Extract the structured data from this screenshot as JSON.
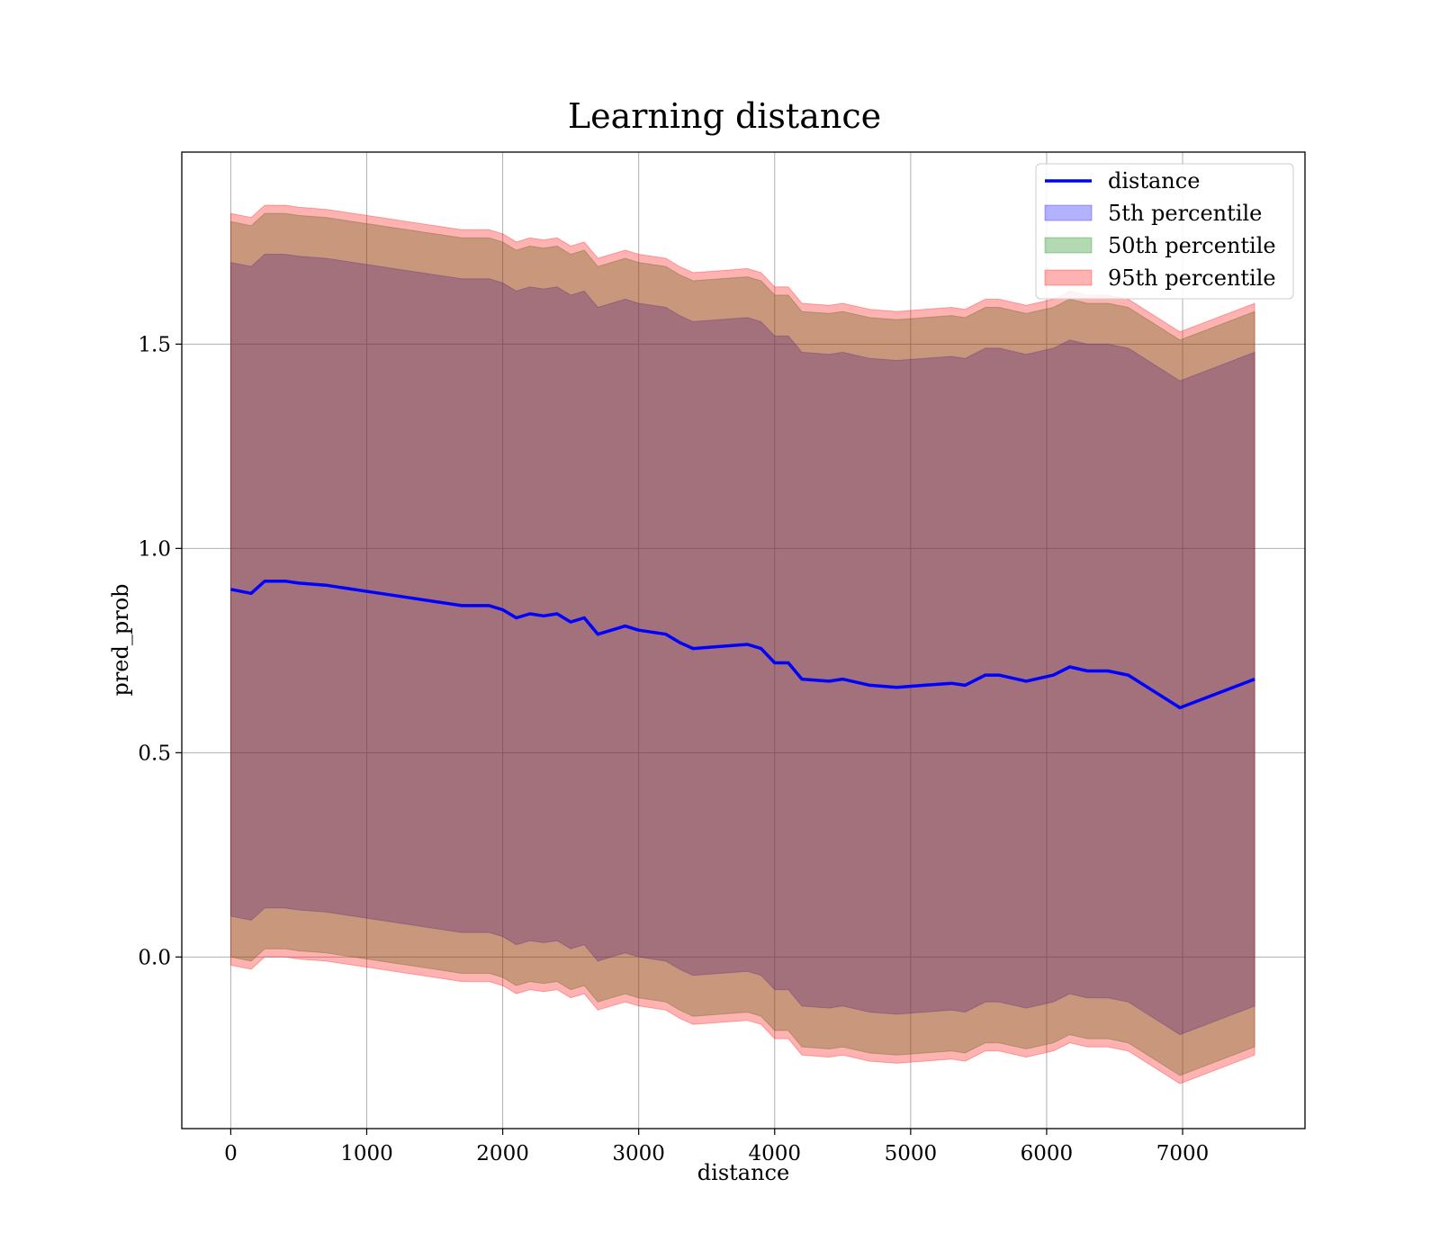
{
  "chart_data": {
    "type": "line",
    "title": "Learning distance",
    "xlabel": "distance",
    "ylabel": "pred_prob",
    "xlim": [
      -360,
      7900
    ],
    "ylim": [
      -0.42,
      1.97
    ],
    "xticks": [
      0,
      1000,
      2000,
      3000,
      4000,
      5000,
      6000,
      7000
    ],
    "xtick_labels": [
      "0",
      "1000",
      "2000",
      "3000",
      "4000",
      "5000",
      "6000",
      "7000"
    ],
    "yticks": [
      0.0,
      0.5,
      1.0,
      1.5
    ],
    "ytick_labels": [
      "0.0",
      "0.5",
      "1.0",
      "1.5"
    ],
    "grid": true,
    "legend_position": "top-right",
    "colors": {
      "line": "#0000ff",
      "band_5": "#0000ff",
      "band_50": "#008000",
      "band_95": "#ff0000"
    },
    "x": [
      0,
      150,
      250,
      400,
      500,
      700,
      900,
      1100,
      1300,
      1500,
      1700,
      1900,
      2000,
      2100,
      2200,
      2300,
      2400,
      2500,
      2600,
      2700,
      2800,
      2900,
      3000,
      3200,
      3300,
      3400,
      3600,
      3800,
      3900,
      4000,
      4100,
      4200,
      4400,
      4500,
      4700,
      4900,
      5100,
      5300,
      5400,
      5550,
      5650,
      5850,
      6050,
      6170,
      6300,
      6450,
      6600,
      6980,
      7530
    ],
    "series": [
      {
        "name": "distance",
        "values": [
          0.9,
          0.89,
          0.92,
          0.92,
          0.915,
          0.91,
          0.9,
          0.89,
          0.88,
          0.87,
          0.86,
          0.86,
          0.85,
          0.83,
          0.84,
          0.835,
          0.84,
          0.82,
          0.83,
          0.79,
          0.8,
          0.81,
          0.8,
          0.79,
          0.77,
          0.755,
          0.76,
          0.765,
          0.755,
          0.72,
          0.72,
          0.68,
          0.675,
          0.68,
          0.665,
          0.66,
          0.665,
          0.67,
          0.665,
          0.69,
          0.69,
          0.675,
          0.69,
          0.71,
          0.7,
          0.7,
          0.69,
          0.61,
          0.68
        ]
      },
      {
        "name": "5th percentile",
        "lower": [
          0.1,
          0.09,
          0.12,
          0.12,
          0.115,
          0.11,
          0.1,
          0.09,
          0.08,
          0.07,
          0.06,
          0.06,
          0.05,
          0.03,
          0.04,
          0.035,
          0.04,
          0.02,
          0.03,
          -0.01,
          0.0,
          0.01,
          0.0,
          -0.01,
          -0.03,
          -0.045,
          -0.04,
          -0.035,
          -0.045,
          -0.08,
          -0.08,
          -0.12,
          -0.125,
          -0.12,
          -0.135,
          -0.14,
          -0.135,
          -0.13,
          -0.135,
          -0.11,
          -0.11,
          -0.125,
          -0.11,
          -0.09,
          -0.1,
          -0.1,
          -0.11,
          -0.19,
          -0.12
        ],
        "upper": [
          1.7,
          1.69,
          1.72,
          1.72,
          1.715,
          1.71,
          1.7,
          1.69,
          1.68,
          1.67,
          1.66,
          1.66,
          1.65,
          1.63,
          1.64,
          1.635,
          1.64,
          1.62,
          1.63,
          1.59,
          1.6,
          1.61,
          1.6,
          1.59,
          1.57,
          1.555,
          1.56,
          1.565,
          1.555,
          1.52,
          1.52,
          1.48,
          1.475,
          1.48,
          1.465,
          1.46,
          1.465,
          1.47,
          1.465,
          1.49,
          1.49,
          1.475,
          1.49,
          1.51,
          1.5,
          1.5,
          1.49,
          1.41,
          1.48
        ]
      },
      {
        "name": "50th percentile",
        "lower": [
          0.0,
          -0.01,
          0.02,
          0.02,
          0.015,
          0.01,
          0.0,
          -0.01,
          -0.02,
          -0.03,
          -0.04,
          -0.04,
          -0.05,
          -0.07,
          -0.06,
          -0.065,
          -0.06,
          -0.08,
          -0.07,
          -0.11,
          -0.1,
          -0.09,
          -0.1,
          -0.11,
          -0.13,
          -0.145,
          -0.14,
          -0.135,
          -0.145,
          -0.18,
          -0.18,
          -0.22,
          -0.225,
          -0.22,
          -0.235,
          -0.24,
          -0.235,
          -0.23,
          -0.235,
          -0.21,
          -0.21,
          -0.225,
          -0.21,
          -0.19,
          -0.2,
          -0.2,
          -0.21,
          -0.29,
          -0.22
        ],
        "upper": [
          1.8,
          1.79,
          1.82,
          1.82,
          1.815,
          1.81,
          1.8,
          1.79,
          1.78,
          1.77,
          1.76,
          1.76,
          1.75,
          1.73,
          1.74,
          1.735,
          1.74,
          1.72,
          1.73,
          1.69,
          1.7,
          1.71,
          1.7,
          1.69,
          1.67,
          1.655,
          1.66,
          1.665,
          1.655,
          1.62,
          1.62,
          1.58,
          1.575,
          1.58,
          1.565,
          1.56,
          1.565,
          1.57,
          1.565,
          1.59,
          1.59,
          1.575,
          1.59,
          1.61,
          1.6,
          1.6,
          1.59,
          1.51,
          1.58
        ]
      },
      {
        "name": "95th percentile",
        "lower": [
          -0.02,
          -0.03,
          0.0,
          0.0,
          -0.005,
          -0.01,
          -0.02,
          -0.03,
          -0.04,
          -0.05,
          -0.06,
          -0.06,
          -0.07,
          -0.09,
          -0.08,
          -0.085,
          -0.08,
          -0.1,
          -0.09,
          -0.13,
          -0.12,
          -0.11,
          -0.12,
          -0.13,
          -0.15,
          -0.165,
          -0.16,
          -0.155,
          -0.165,
          -0.2,
          -0.2,
          -0.24,
          -0.245,
          -0.24,
          -0.255,
          -0.26,
          -0.255,
          -0.25,
          -0.255,
          -0.23,
          -0.23,
          -0.245,
          -0.23,
          -0.21,
          -0.22,
          -0.22,
          -0.23,
          -0.31,
          -0.24
        ],
        "upper": [
          1.82,
          1.81,
          1.84,
          1.84,
          1.835,
          1.83,
          1.82,
          1.81,
          1.8,
          1.79,
          1.78,
          1.78,
          1.77,
          1.75,
          1.76,
          1.755,
          1.76,
          1.74,
          1.75,
          1.71,
          1.72,
          1.73,
          1.72,
          1.71,
          1.69,
          1.675,
          1.68,
          1.685,
          1.675,
          1.64,
          1.64,
          1.6,
          1.595,
          1.6,
          1.585,
          1.58,
          1.585,
          1.59,
          1.585,
          1.61,
          1.61,
          1.595,
          1.61,
          1.63,
          1.62,
          1.62,
          1.61,
          1.53,
          1.6
        ]
      }
    ]
  }
}
